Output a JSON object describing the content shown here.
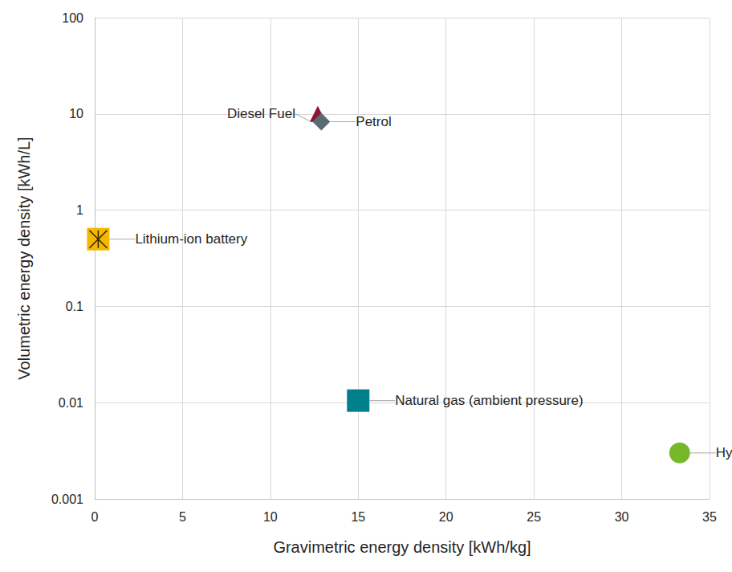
{
  "chart_data": {
    "type": "scatter",
    "xlabel": "Gravimetric energy density [kWh/kg]",
    "ylabel": "Volumetric energy density [kWh/L]",
    "series": [
      {
        "name": "Diesel Fuel",
        "color": "#8c1436",
        "marker": "triangle",
        "x": [
          12.7
        ],
        "values": [
          10
        ]
      },
      {
        "name": "Petrol",
        "color": "#5b6b72",
        "marker": "diamond",
        "x": [
          12.9
        ],
        "values": [
          8.3
        ]
      },
      {
        "name": "Lithium-ion battery",
        "color": "#f5b800",
        "marker": "square_x",
        "x": [
          0.2
        ],
        "values": [
          0.5
        ]
      },
      {
        "name": "Natural gas (ambient pressure)",
        "color": "#00808a",
        "marker": "square",
        "x": [
          15
        ],
        "values": [
          0.0105
        ]
      },
      {
        "name": "Hydrogen (ambient pressure)",
        "color": "#76b82a",
        "marker": "circle",
        "x": [
          33.3
        ],
        "values": [
          0.003
        ]
      }
    ],
    "xlim": [
      0,
      35
    ],
    "xticks": [
      0,
      5,
      10,
      15,
      20,
      25,
      30,
      35
    ],
    "ylim": [
      0.001,
      100
    ],
    "yticks": [
      0.001,
      0.01,
      0.1,
      1,
      10,
      100
    ],
    "log": "y",
    "grid": true
  }
}
